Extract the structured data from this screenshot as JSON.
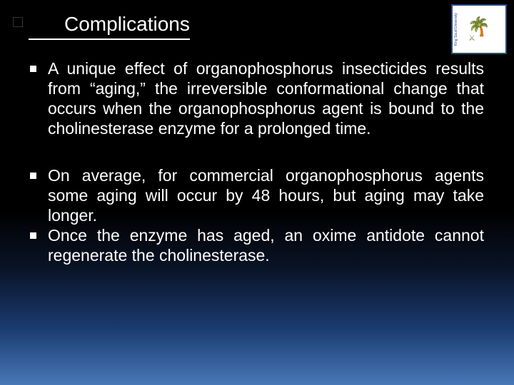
{
  "slide": {
    "title": "Complications",
    "logo": {
      "institution": "King Saud University"
    },
    "bullets": [
      "A unique effect of organophosphorus insecticides results from “aging,” the irreversible conformational change that occurs when the organophosphorus agent is bound to the cholinesterase enzyme for a prolonged time.",
      "On average, for commercial organophosphorus agents some aging will occur by 48 hours, but aging may take longer.",
      "Once the enzyme has aged, an oxime antidote cannot regenerate the cholinesterase."
    ],
    "colors": {
      "background_top": "#000000",
      "background_bottom": "#4878b8",
      "text": "#ffffff",
      "title_underline": "#ffffff",
      "logo_border": "#2a4a8a",
      "logo_tree": "#2a7a3a"
    },
    "typography": {
      "title_fontsize": 28,
      "body_fontsize": 23,
      "font_family": "Arial"
    }
  }
}
